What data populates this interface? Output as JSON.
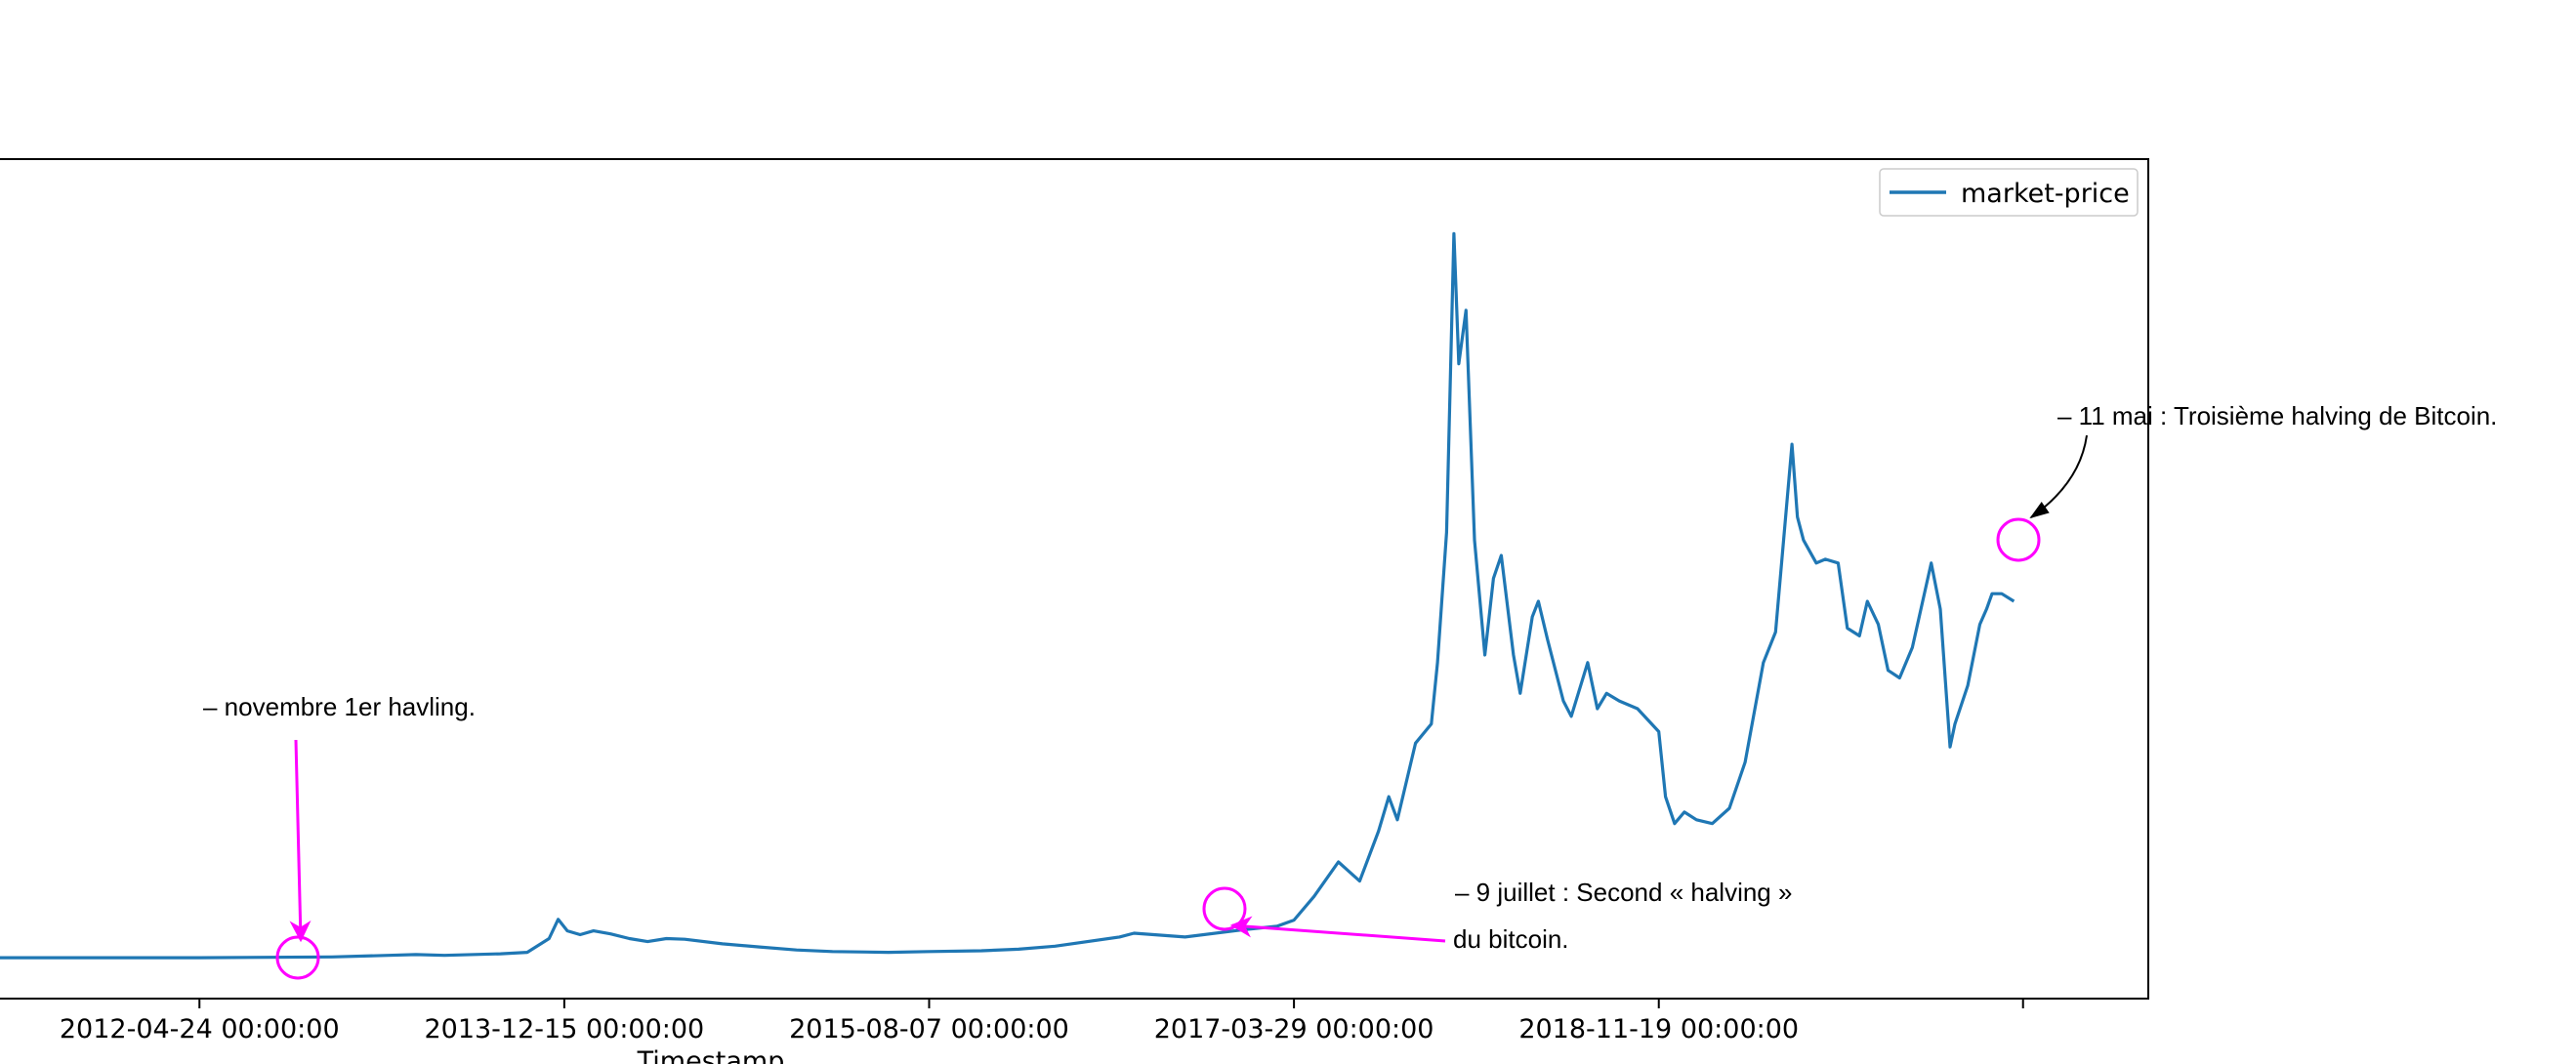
{
  "chart_data": {
    "type": "line",
    "title": "",
    "xlabel": "Timestamp",
    "ylabel": "",
    "legend": {
      "position": "top-right",
      "entries": [
        "market-price"
      ]
    },
    "x_ticks": [
      "2012-04-24 00:00:00",
      "2013-12-15 00:00:00",
      "2015-08-07 00:00:00",
      "2017-03-29 00:00:00",
      "2018-11-19 00:00:00",
      ""
    ],
    "x_range": [
      "2011-06-01",
      "2021-02-01"
    ],
    "grid": false,
    "series": [
      {
        "name": "market-price",
        "color": "#1f77b4",
        "points": [
          [
            "2011-06-01",
            0.005
          ],
          [
            "2012-04-24",
            0.005
          ],
          [
            "2012-11-28",
            0.006
          ],
          [
            "2013-03-01",
            0.008
          ],
          [
            "2013-04-15",
            0.009
          ],
          [
            "2013-06-01",
            0.008
          ],
          [
            "2013-09-01",
            0.01
          ],
          [
            "2013-10-15",
            0.012
          ],
          [
            "2013-11-20",
            0.03
          ],
          [
            "2013-12-05",
            0.055
          ],
          [
            "2013-12-20",
            0.04
          ],
          [
            "2014-01-10",
            0.035
          ],
          [
            "2014-02-01",
            0.04
          ],
          [
            "2014-03-01",
            0.036
          ],
          [
            "2014-04-01",
            0.03
          ],
          [
            "2014-05-01",
            0.026
          ],
          [
            "2014-06-01",
            0.03
          ],
          [
            "2014-07-01",
            0.029
          ],
          [
            "2014-09-01",
            0.023
          ],
          [
            "2014-11-01",
            0.019
          ],
          [
            "2015-01-01",
            0.015
          ],
          [
            "2015-03-01",
            0.013
          ],
          [
            "2015-06-01",
            0.012
          ],
          [
            "2015-08-07",
            0.013
          ],
          [
            "2015-11-01",
            0.014
          ],
          [
            "2016-01-01",
            0.016
          ],
          [
            "2016-03-01",
            0.02
          ],
          [
            "2016-06-15",
            0.032
          ],
          [
            "2016-07-09",
            0.037
          ],
          [
            "2016-10-01",
            0.032
          ],
          [
            "2016-12-31",
            0.041
          ],
          [
            "2017-03-01",
            0.046
          ],
          [
            "2017-03-29",
            0.054
          ],
          [
            "2017-05-01",
            0.085
          ],
          [
            "2017-06-10",
            0.13
          ],
          [
            "2017-07-15",
            0.105
          ],
          [
            "2017-08-15",
            0.17
          ],
          [
            "2017-09-01",
            0.215
          ],
          [
            "2017-09-15",
            0.185
          ],
          [
            "2017-10-15",
            0.285
          ],
          [
            "2017-11-10",
            0.31
          ],
          [
            "2017-11-20",
            0.39
          ],
          [
            "2017-12-05",
            0.56
          ],
          [
            "2017-12-17",
            0.95
          ],
          [
            "2017-12-25",
            0.78
          ],
          [
            "2018-01-06",
            0.85
          ],
          [
            "2018-01-20",
            0.55
          ],
          [
            "2018-02-06",
            0.4
          ],
          [
            "2018-02-20",
            0.5
          ],
          [
            "2018-03-05",
            0.53
          ],
          [
            "2018-03-25",
            0.4
          ],
          [
            "2018-04-05",
            0.35
          ],
          [
            "2018-04-25",
            0.45
          ],
          [
            "2018-05-05",
            0.47
          ],
          [
            "2018-05-20",
            0.42
          ],
          [
            "2018-06-15",
            0.34
          ],
          [
            "2018-06-28",
            0.32
          ],
          [
            "2018-07-25",
            0.39
          ],
          [
            "2018-08-10",
            0.33
          ],
          [
            "2018-08-25",
            0.35
          ],
          [
            "2018-09-15",
            0.34
          ],
          [
            "2018-10-15",
            0.33
          ],
          [
            "2018-11-19",
            0.3
          ],
          [
            "2018-11-30",
            0.215
          ],
          [
            "2018-12-15",
            0.18
          ],
          [
            "2018-12-31",
            0.195
          ],
          [
            "2019-01-20",
            0.185
          ],
          [
            "2019-02-15",
            0.18
          ],
          [
            "2019-03-15",
            0.2
          ],
          [
            "2019-04-10",
            0.26
          ],
          [
            "2019-05-10",
            0.39
          ],
          [
            "2019-05-30",
            0.43
          ],
          [
            "2019-06-26",
            0.675
          ],
          [
            "2019-07-05",
            0.58
          ],
          [
            "2019-07-15",
            0.55
          ],
          [
            "2019-08-05",
            0.52
          ],
          [
            "2019-08-20",
            0.525
          ],
          [
            "2019-09-10",
            0.52
          ],
          [
            "2019-09-25",
            0.435
          ],
          [
            "2019-10-15",
            0.425
          ],
          [
            "2019-10-28",
            0.47
          ],
          [
            "2019-11-15",
            0.44
          ],
          [
            "2019-12-01",
            0.38
          ],
          [
            "2019-12-20",
            0.37
          ],
          [
            "2020-01-10",
            0.41
          ],
          [
            "2020-02-10",
            0.52
          ],
          [
            "2020-02-25",
            0.46
          ],
          [
            "2020-03-12",
            0.28
          ],
          [
            "2020-03-20",
            0.31
          ],
          [
            "2020-04-10",
            0.36
          ],
          [
            "2020-04-30",
            0.44
          ],
          [
            "2020-05-11",
            0.46
          ],
          [
            "2020-05-20",
            0.48
          ],
          [
            "2020-06-05",
            0.48
          ],
          [
            "2020-06-25",
            0.47
          ]
        ]
      }
    ],
    "annotations": [
      {
        "text": "– novembre  1er havling.",
        "date": "2012-11-28",
        "color": "#ff00ff"
      },
      {
        "text_line1": "– 9 juillet : Second « halving »",
        "text_line2": "du bitcoin.",
        "date": "2016-07-09",
        "color": "#ff00ff"
      },
      {
        "text": "– 11 mai : Troisième halving de Bitcoin.",
        "date": "2020-05-11",
        "color": "#000000"
      }
    ]
  }
}
